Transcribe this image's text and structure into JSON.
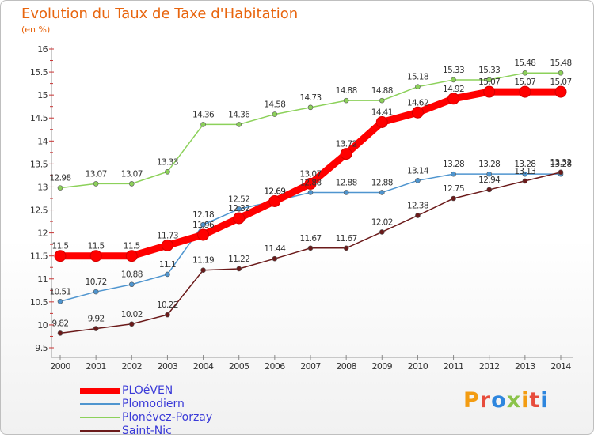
{
  "title": "Evolution du Taux de Taxe d'Habitation",
  "unit": "(en %)",
  "logo": {
    "text": "Proxiti",
    "colors": [
      "#f39c12",
      "#e74c3c",
      "#2e86de",
      "#8bc34a"
    ]
  },
  "chart_data": {
    "type": "line",
    "title": "Evolution du Taux de Taxe d'Habitation",
    "ylabel": "(en %)",
    "xlabel": "",
    "x": [
      2000,
      2001,
      2002,
      2003,
      2004,
      2005,
      2006,
      2007,
      2008,
      2009,
      2010,
      2011,
      2012,
      2013,
      2014
    ],
    "ylim": [
      9.5,
      16
    ],
    "yticks": [
      9.5,
      10,
      10.5,
      11,
      11.5,
      12,
      12.5,
      13,
      13.5,
      14,
      14.5,
      15,
      15.5,
      16
    ],
    "ytick_labels": [
      "9.5",
      "10",
      "10.5",
      "11",
      "11.5",
      "12",
      "12.5",
      "13",
      "13.5",
      "14",
      "14.5",
      "15",
      "15.5",
      "16"
    ],
    "grid": false,
    "legend": "bottom-left",
    "series": [
      {
        "name": "PLOéVEN",
        "color": "#ff0000",
        "emphasis": true,
        "values": [
          11.5,
          11.5,
          11.5,
          11.73,
          11.96,
          12.32,
          12.69,
          13.07,
          13.72,
          14.41,
          14.62,
          14.92,
          15.07,
          15.07,
          15.07
        ],
        "labels": [
          "11.5",
          "11.5",
          "11.5",
          "11.73",
          "11.96",
          "12.32",
          "12.69",
          "13.07",
          "13.72",
          "14.41",
          "14.62",
          "14.92",
          "15.07",
          "15.07",
          "15.07"
        ]
      },
      {
        "name": "Plomodiern",
        "color": "#4f95cf",
        "values": [
          10.51,
          10.72,
          10.88,
          11.1,
          12.18,
          12.52,
          12.69,
          12.88,
          12.88,
          12.88,
          13.14,
          13.28,
          13.28,
          13.28,
          13.28
        ],
        "labels": [
          "10.51",
          "10.72",
          "10.88",
          "11.1",
          "12.18",
          "12.52",
          "12.69",
          "12.88",
          "12.88",
          "12.88",
          "13.14",
          "13.28",
          "13.28",
          "13.28",
          "13.28"
        ]
      },
      {
        "name": "Plonévez-Porzay",
        "color": "#8cd15a",
        "values": [
          12.98,
          13.07,
          13.07,
          13.33,
          14.36,
          14.36,
          14.58,
          14.73,
          14.88,
          14.88,
          15.18,
          15.33,
          15.33,
          15.48,
          15.48
        ],
        "labels": [
          "12.98",
          "13.07",
          "13.07",
          "13.33",
          "14.36",
          "14.36",
          "14.58",
          "14.73",
          "14.88",
          "14.88",
          "15.18",
          "15.33",
          "15.33",
          "15.48",
          "15.48"
        ]
      },
      {
        "name": "Saint-Nic",
        "color": "#6b1a1a",
        "values": [
          9.82,
          9.92,
          10.02,
          10.22,
          11.19,
          11.22,
          11.44,
          11.67,
          11.67,
          12.02,
          12.38,
          12.75,
          12.94,
          13.13,
          13.32
        ],
        "labels": [
          "9.82",
          "9.92",
          "10.02",
          "10.22",
          "11.19",
          "11.22",
          "11.44",
          "11.67",
          "11.67",
          "12.02",
          "12.38",
          "12.75",
          "12.94",
          "13.13",
          "13.32"
        ]
      }
    ]
  }
}
